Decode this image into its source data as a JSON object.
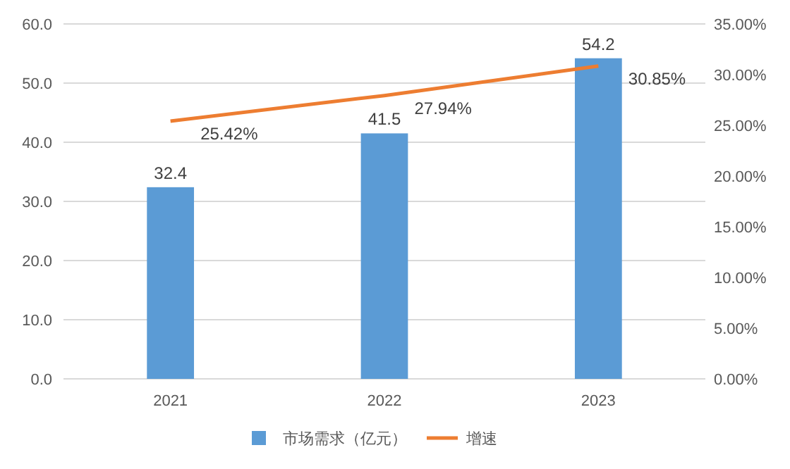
{
  "chart_data": {
    "type": "bar",
    "categories": [
      "2021",
      "2022",
      "2023"
    ],
    "series": [
      {
        "name": "市场需求（亿元）",
        "color": "#5b9bd5",
        "values": [
          32.4,
          41.5,
          54.2
        ],
        "value_labels": [
          "32.4",
          "41.5",
          "54.2"
        ]
      },
      {
        "name": "增速",
        "type": "line",
        "axis": "y2",
        "color": "#ed7d31",
        "values": [
          25.42,
          27.94,
          30.85
        ],
        "value_labels": [
          "25.42%",
          "27.94%",
          "30.85%"
        ]
      }
    ],
    "ylim": [
      0,
      60
    ],
    "yticks": [
      {
        "value": 0,
        "label": "0.0"
      },
      {
        "value": 10,
        "label": "10.0"
      },
      {
        "value": 20,
        "label": "20.0"
      },
      {
        "value": 30,
        "label": "30.0"
      },
      {
        "value": 40,
        "label": "40.0"
      },
      {
        "value": 50,
        "label": "50.0"
      },
      {
        "value": 60,
        "label": "60.0"
      }
    ],
    "y2lim": [
      0,
      35
    ],
    "y2ticks": [
      {
        "value": 0,
        "label": "0.00%"
      },
      {
        "value": 5,
        "label": "5.00%"
      },
      {
        "value": 10,
        "label": "10.00%"
      },
      {
        "value": 15,
        "label": "15.00%"
      },
      {
        "value": 20,
        "label": "20.00%"
      },
      {
        "value": 25,
        "label": "25.00%"
      },
      {
        "value": 30,
        "label": "30.00%"
      },
      {
        "value": 35,
        "label": "35.00%"
      }
    ],
    "grid": "y",
    "legend": "bottom",
    "marker": "none",
    "line_style": "solid"
  }
}
